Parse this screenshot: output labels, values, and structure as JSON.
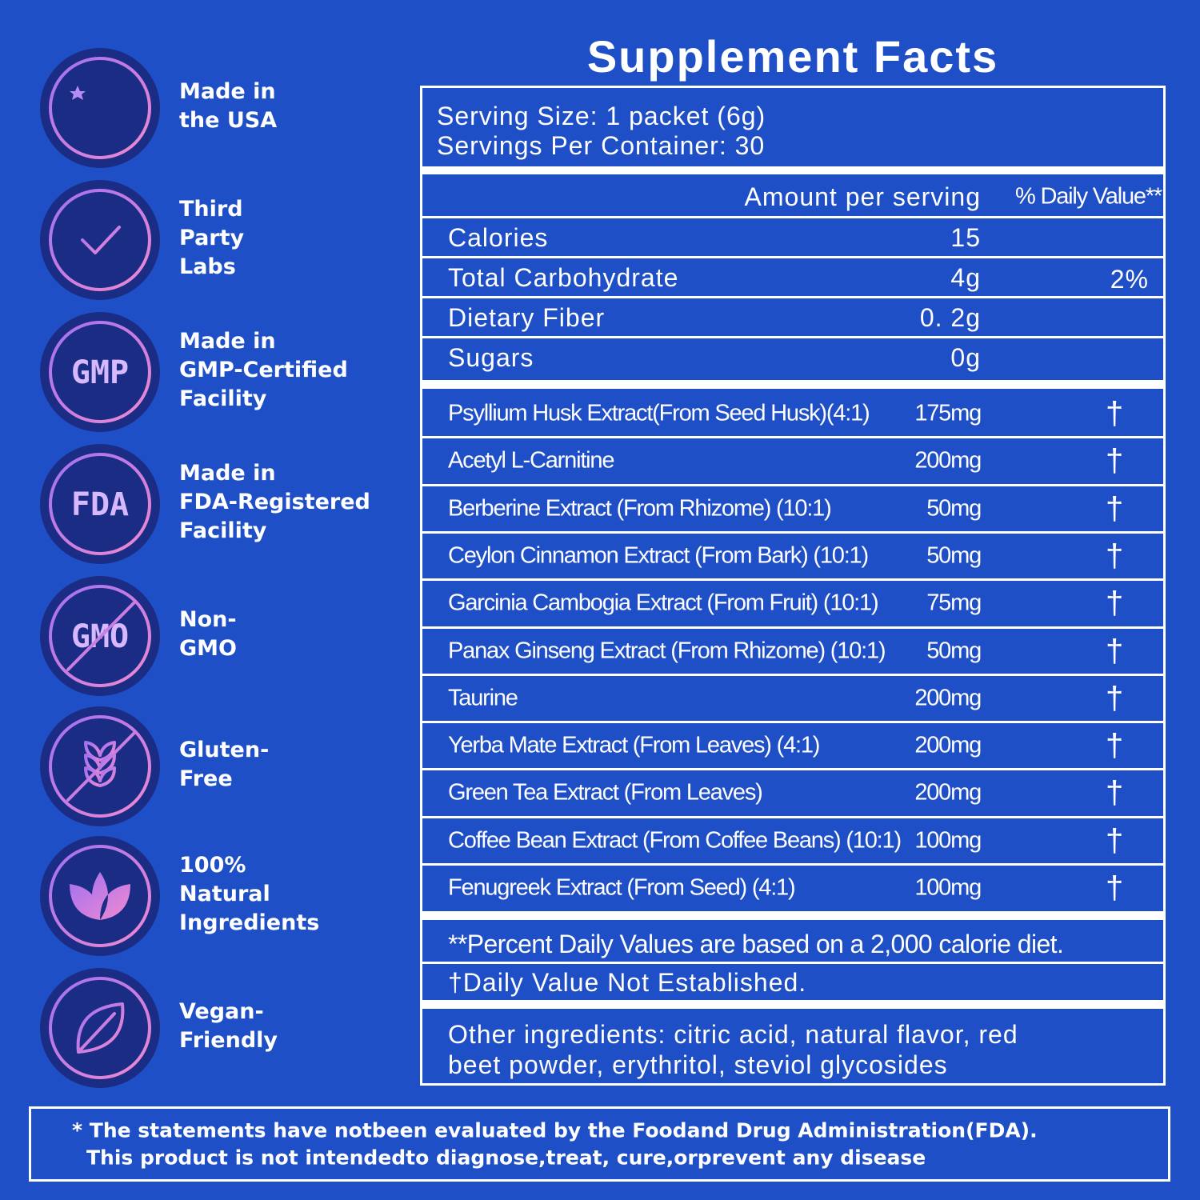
{
  "badges": [
    {
      "lines": [
        "Made in",
        "the USA"
      ]
    },
    {
      "lines": [
        "Third",
        "Party",
        "Labs"
      ]
    },
    {
      "icon_text": "GMP",
      "lines": [
        "Made in",
        "GMP-Certified",
        "Facility"
      ]
    },
    {
      "icon_text": "FDA",
      "lines": [
        "Made in",
        "FDA-Registered",
        "Facility"
      ]
    },
    {
      "icon_text": "GMO",
      "lines": [
        "Non-",
        "GMO"
      ]
    },
    {
      "lines": [
        "Gluten-",
        "Free"
      ]
    },
    {
      "lines": [
        "100%",
        "Natural",
        "Ingredients"
      ]
    },
    {
      "lines": [
        "Vegan-",
        "Friendly"
      ]
    }
  ],
  "facts": {
    "title": "Supplement Facts",
    "serving_size": "Serving Size: 1 packet (6g)",
    "servings_per_container": "Servings Per Container: 30",
    "header": {
      "amount": "Amount per serving",
      "daily_value": "% Daily Value**"
    },
    "nutrients": [
      [
        "Calories",
        "15",
        ""
      ],
      [
        "Total Carbohydrate",
        "4g",
        "2%"
      ],
      [
        "Dietary Fiber",
        "0. 2g",
        ""
      ],
      [
        "Sugars",
        "0g",
        ""
      ]
    ],
    "ingredients": [
      [
        "Psyllium Husk Extract(From Seed Husk)(4:1)",
        "175mg",
        "†"
      ],
      [
        "Acetyl L-Carnitine",
        "200mg",
        "†"
      ],
      [
        "Berberine Extract (From Rhizome) (10:1)",
        "50mg",
        "†"
      ],
      [
        "Ceylon Cinnamon Extract (From Bark) (10:1)",
        "50mg",
        "†"
      ],
      [
        "Garcinia Cambogia Extract (From Fruit) (10:1)",
        "75mg",
        "†"
      ],
      [
        "Panax Ginseng Extract (From Rhizome) (10:1)",
        "50mg",
        "†"
      ],
      [
        "Taurine",
        "200mg",
        "†"
      ],
      [
        "Yerba Mate Extract (From Leaves) (4:1)",
        "200mg",
        "†"
      ],
      [
        "Green Tea Extract (From Leaves)",
        "200mg",
        "†"
      ],
      [
        "Coffee Bean Extract (From Coffee Beans) (10:1)",
        "100mg",
        "†"
      ],
      [
        "Fenugreek Extract (From Seed) (4:1)",
        "100mg",
        "†"
      ]
    ],
    "footnotes": [
      "**Percent Daily Values are based on a 2,000 calorie diet.",
      "†Daily Value Not Established."
    ],
    "other_ingredients": [
      "Other ingredients: citric acid, natural flavor, red",
      "beet powder, erythritol, steviol glycosides"
    ]
  },
  "disclaimer": [
    "* The statements have notbeen evaluated by the Foodand Drug Administration(FDA).",
    "This product is not intendedto diagnose,treat, cure,orprevent any disease"
  ]
}
